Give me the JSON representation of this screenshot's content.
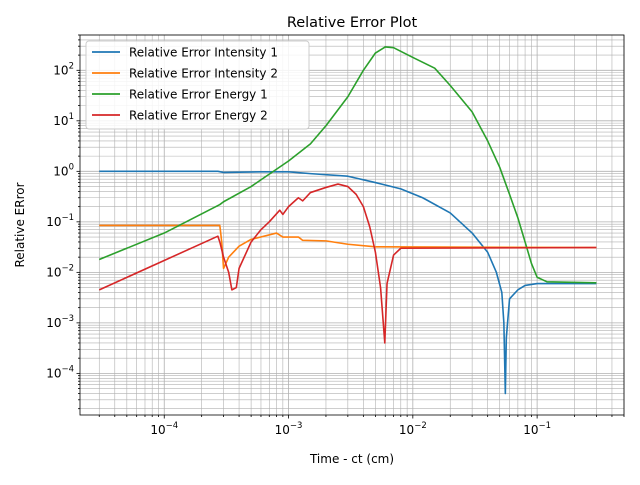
{
  "chart_data": {
    "type": "line",
    "title": "Relative Error Plot",
    "xlabel": "Time - ct (cm)",
    "ylabel": "Relative ERror",
    "xscale": "log",
    "yscale": "log",
    "xlim": [
      2.1e-05,
      0.5
    ],
    "ylim": [
      1.5e-05,
      500
    ],
    "grid": "major and minor",
    "legend_position": "upper-left",
    "x_ticks": [
      {
        "value": 0.0001,
        "base": "10",
        "exp": "−4"
      },
      {
        "value": 0.001,
        "base": "10",
        "exp": "−3"
      },
      {
        "value": 0.01,
        "base": "10",
        "exp": "−2"
      },
      {
        "value": 0.1,
        "base": "10",
        "exp": "−1"
      }
    ],
    "y_ticks": [
      {
        "value": 0.0001,
        "base": "10",
        "exp": "−4"
      },
      {
        "value": 0.001,
        "base": "10",
        "exp": "−3"
      },
      {
        "value": 0.01,
        "base": "10",
        "exp": "−2"
      },
      {
        "value": 0.1,
        "base": "10",
        "exp": "−1"
      },
      {
        "value": 1,
        "base": "10",
        "exp": "0"
      },
      {
        "value": 10,
        "base": "10",
        "exp": "1"
      },
      {
        "value": 100,
        "base": "10",
        "exp": "2"
      }
    ],
    "series": [
      {
        "name": "Relative Error Intensity 1",
        "color": "#1f77b4",
        "points": [
          [
            3e-05,
            1.0
          ],
          [
            0.00027,
            1.0
          ],
          [
            0.0003,
            0.95
          ],
          [
            0.0006,
            0.98
          ],
          [
            0.001,
            0.98
          ],
          [
            0.0015,
            0.9
          ],
          [
            0.003,
            0.8
          ],
          [
            0.005,
            0.6
          ],
          [
            0.008,
            0.45
          ],
          [
            0.012,
            0.3
          ],
          [
            0.02,
            0.15
          ],
          [
            0.03,
            0.06
          ],
          [
            0.04,
            0.025
          ],
          [
            0.047,
            0.01
          ],
          [
            0.052,
            0.004
          ],
          [
            0.054,
            0.001
          ],
          [
            0.0555,
            4e-05
          ],
          [
            0.0565,
            0.0005
          ],
          [
            0.06,
            0.003
          ],
          [
            0.07,
            0.0045
          ],
          [
            0.08,
            0.0055
          ],
          [
            0.1,
            0.006
          ],
          [
            0.3,
            0.006
          ]
        ]
      },
      {
        "name": "Relative Error Intensity 2",
        "color": "#ff7f0e",
        "points": [
          [
            3e-05,
            0.085
          ],
          [
            0.00028,
            0.085
          ],
          [
            0.00029,
            0.04
          ],
          [
            0.0003,
            0.012
          ],
          [
            0.00033,
            0.02
          ],
          [
            0.0004,
            0.033
          ],
          [
            0.0005,
            0.045
          ],
          [
            0.0008,
            0.06
          ],
          [
            0.0009,
            0.05
          ],
          [
            0.0012,
            0.05
          ],
          [
            0.0013,
            0.043
          ],
          [
            0.002,
            0.042
          ],
          [
            0.003,
            0.036
          ],
          [
            0.005,
            0.032
          ],
          [
            0.3,
            0.031
          ]
        ]
      },
      {
        "name": "Relative Error Energy 1",
        "color": "#2ca02c",
        "points": [
          [
            3e-05,
            0.018
          ],
          [
            0.0001,
            0.06
          ],
          [
            0.00028,
            0.22
          ],
          [
            0.0003,
            0.25
          ],
          [
            0.0005,
            0.5
          ],
          [
            0.001,
            1.6
          ],
          [
            0.0015,
            3.5
          ],
          [
            0.002,
            8
          ],
          [
            0.003,
            30
          ],
          [
            0.004,
            100
          ],
          [
            0.005,
            220
          ],
          [
            0.006,
            290
          ],
          [
            0.007,
            280
          ],
          [
            0.01,
            180
          ],
          [
            0.015,
            110
          ],
          [
            0.02,
            50
          ],
          [
            0.03,
            15
          ],
          [
            0.04,
            4
          ],
          [
            0.05,
            1.2
          ],
          [
            0.06,
            0.35
          ],
          [
            0.07,
            0.12
          ],
          [
            0.08,
            0.04
          ],
          [
            0.09,
            0.015
          ],
          [
            0.1,
            0.008
          ],
          [
            0.12,
            0.0065
          ],
          [
            0.3,
            0.0062
          ]
        ]
      },
      {
        "name": "Relative Error Energy 2",
        "color": "#d62728",
        "points": [
          [
            3e-05,
            0.0045
          ],
          [
            0.00027,
            0.052
          ],
          [
            0.00028,
            0.04
          ],
          [
            0.0003,
            0.02
          ],
          [
            0.00033,
            0.01
          ],
          [
            0.00035,
            0.0045
          ],
          [
            0.00038,
            0.005
          ],
          [
            0.0004,
            0.012
          ],
          [
            0.0005,
            0.04
          ],
          [
            0.0006,
            0.07
          ],
          [
            0.0007,
            0.1
          ],
          [
            0.00085,
            0.17
          ],
          [
            0.0009,
            0.14
          ],
          [
            0.001,
            0.2
          ],
          [
            0.0012,
            0.3
          ],
          [
            0.0013,
            0.26
          ],
          [
            0.0015,
            0.38
          ],
          [
            0.002,
            0.48
          ],
          [
            0.0025,
            0.56
          ],
          [
            0.003,
            0.5
          ],
          [
            0.0035,
            0.35
          ],
          [
            0.004,
            0.2
          ],
          [
            0.0045,
            0.08
          ],
          [
            0.005,
            0.025
          ],
          [
            0.0055,
            0.005
          ],
          [
            0.00595,
            0.0004
          ],
          [
            0.0062,
            0.006
          ],
          [
            0.007,
            0.022
          ],
          [
            0.008,
            0.03
          ],
          [
            0.3,
            0.031
          ]
        ]
      }
    ]
  }
}
